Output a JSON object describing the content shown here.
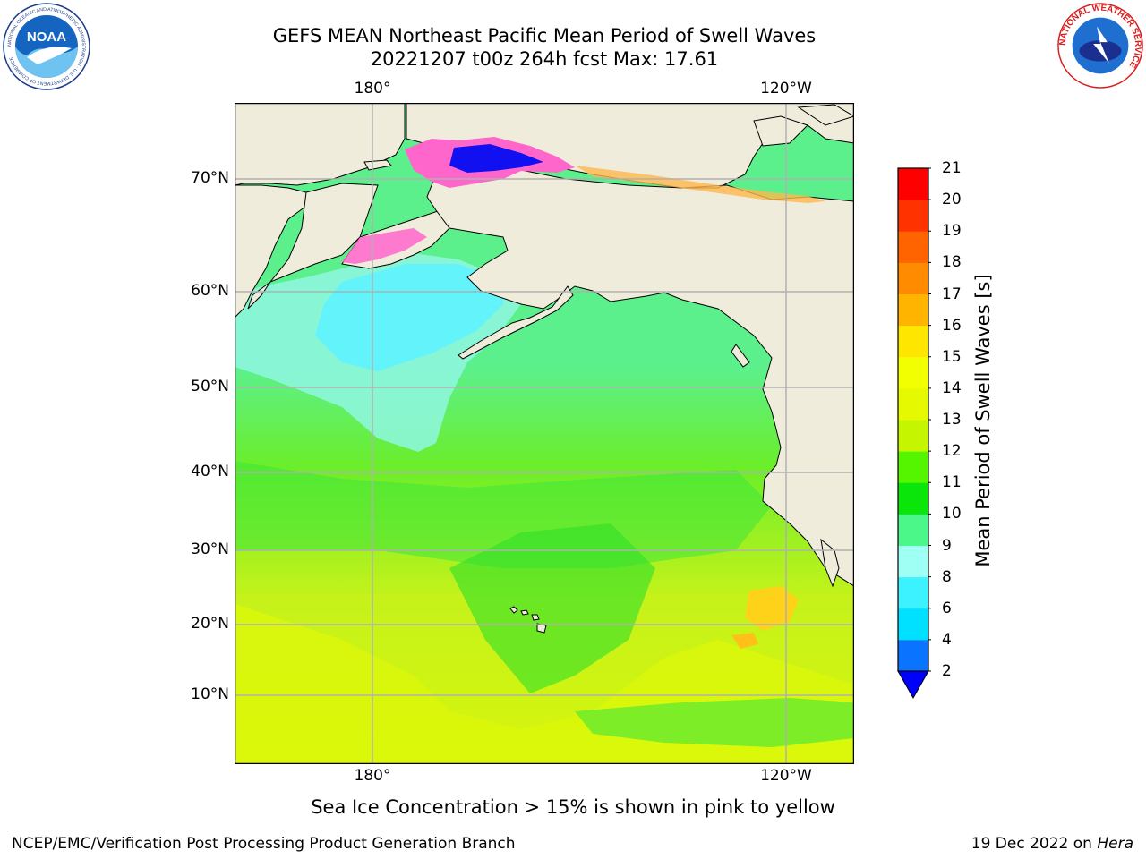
{
  "header": {
    "title_line1": "GEFS MEAN Northeast Pacific Mean Period of Swell Waves",
    "title_line2": "20221207 t00z 264h fcst   Max: 17.61"
  },
  "logos": {
    "left": "NOAA logo",
    "left_text": "NOAA",
    "left_ring_text": "NATIONAL OCEANIC AND ATMOSPHERIC ADMINISTRATION · U.S. DEPARTMENT OF COMMERCE",
    "right": "National Weather Service logo",
    "right_ring_text": "NATIONAL WEATHER SERVICE"
  },
  "map": {
    "lon_labels_top": [
      "180°",
      "120°W"
    ],
    "lon_labels_bottom": [
      "180°",
      "120°W"
    ],
    "lat_labels": [
      "70°N",
      "60°N",
      "50°N",
      "40°N",
      "30°N",
      "20°N",
      "10°N"
    ],
    "land_color": "#efecdc",
    "grid_color": "#b0b0b0",
    "coast_color": "#000000"
  },
  "colorbar": {
    "title": "Mean Period of Swell Waves [s]",
    "tick_labels": [
      "2",
      "4",
      "6",
      "8",
      "9",
      "10",
      "11",
      "12",
      "13",
      "14",
      "15",
      "16",
      "17",
      "18",
      "19",
      "20",
      "21"
    ],
    "colors": [
      "#0a73ff",
      "#00e0ff",
      "#3cf2ff",
      "#a0fff5",
      "#4cf78a",
      "#0ae60a",
      "#55f500",
      "#c6f500",
      "#e5fa00",
      "#f2ff00",
      "#ffe600",
      "#ffb400",
      "#ff8c00",
      "#ff6400",
      "#ff3200",
      "#ff0000"
    ],
    "under_color": "#0000ff"
  },
  "caption": "Sea Ice Concentration > 15% is shown in pink to yellow",
  "footer": {
    "left": "NCEP/EMC/Verification Post Processing Product Generation Branch",
    "right_prefix": "19 Dec 2022 on ",
    "right_italic": "Hera"
  }
}
